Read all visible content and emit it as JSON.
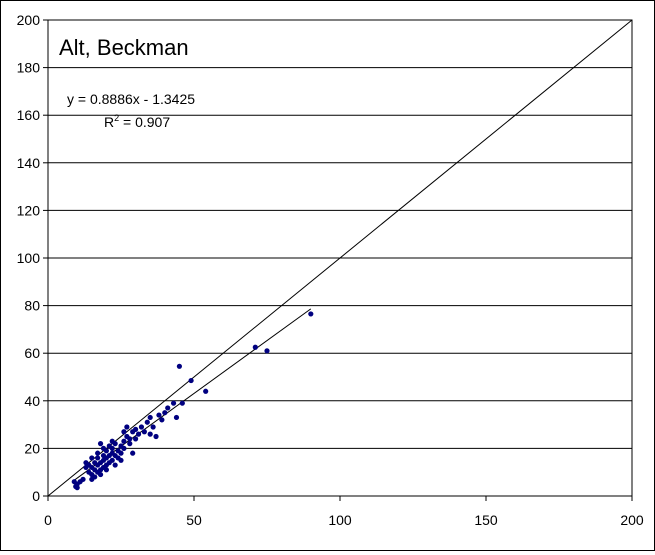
{
  "chart_data": {
    "type": "scatter",
    "title": "Alt, Beckman",
    "xlabel": "",
    "ylabel": "",
    "xlim": [
      0,
      200
    ],
    "ylim": [
      0,
      200
    ],
    "x_ticks": [
      0,
      50,
      100,
      150,
      200
    ],
    "y_ticks": [
      0,
      20,
      40,
      60,
      80,
      100,
      120,
      140,
      160,
      180,
      200
    ],
    "grid": "horizontal major gridlines",
    "legend": "none",
    "colors": {
      "points": "#000080",
      "lines": "#000000",
      "grid": "#000000"
    },
    "annotations": {
      "equation": "y = 0.8886x - 1.3425",
      "r2_prefix": "R",
      "r2_exp": "2",
      "r2_suffix": " = 0.907"
    },
    "trendline": {
      "slope": 0.8886,
      "intercept": -1.3425,
      "x_range": [
        9,
        90
      ]
    },
    "identity_line": {
      "x_range": [
        0,
        200
      ]
    },
    "series": [
      {
        "points": [
          [
            9,
            6
          ],
          [
            9.5,
            4
          ],
          [
            10,
            5
          ],
          [
            10,
            3.5
          ],
          [
            11,
            6
          ],
          [
            12,
            7
          ],
          [
            13,
            12
          ],
          [
            13,
            14
          ],
          [
            14,
            10
          ],
          [
            14,
            13
          ],
          [
            15,
            9
          ],
          [
            15,
            12
          ],
          [
            15,
            16
          ],
          [
            15,
            7
          ],
          [
            16,
            11
          ],
          [
            16,
            14
          ],
          [
            16,
            8
          ],
          [
            17,
            13
          ],
          [
            17,
            10
          ],
          [
            17,
            16
          ],
          [
            17,
            18
          ],
          [
            18,
            11
          ],
          [
            18,
            14
          ],
          [
            18,
            22
          ],
          [
            18,
            9
          ],
          [
            19,
            12
          ],
          [
            19,
            15
          ],
          [
            19,
            17
          ],
          [
            19,
            20
          ],
          [
            20,
            13
          ],
          [
            20,
            16
          ],
          [
            20,
            19
          ],
          [
            20,
            11
          ],
          [
            21,
            14
          ],
          [
            21,
            17
          ],
          [
            21,
            21
          ],
          [
            22,
            15
          ],
          [
            22,
            18
          ],
          [
            22,
            20
          ],
          [
            22,
            23
          ],
          [
            23,
            13
          ],
          [
            23,
            17
          ],
          [
            23,
            22
          ],
          [
            24,
            16
          ],
          [
            24,
            19
          ],
          [
            25,
            18
          ],
          [
            25,
            21
          ],
          [
            25,
            15
          ],
          [
            26,
            23
          ],
          [
            26,
            27
          ],
          [
            26,
            20
          ],
          [
            27,
            25
          ],
          [
            27,
            29
          ],
          [
            28,
            22
          ],
          [
            28,
            24
          ],
          [
            29,
            27
          ],
          [
            29,
            18
          ],
          [
            30,
            24
          ],
          [
            30,
            28
          ],
          [
            31,
            26
          ],
          [
            32,
            29
          ],
          [
            33,
            27
          ],
          [
            34,
            31
          ],
          [
            35,
            26
          ],
          [
            35,
            33
          ],
          [
            36,
            29
          ],
          [
            37,
            25
          ],
          [
            38,
            34
          ],
          [
            39,
            32
          ],
          [
            40,
            35
          ],
          [
            41,
            37
          ],
          [
            43,
            39
          ],
          [
            44,
            33
          ],
          [
            46,
            39
          ],
          [
            45,
            54.5
          ],
          [
            49,
            48.5
          ],
          [
            54,
            44
          ],
          [
            71,
            62.5
          ],
          [
            75,
            61
          ],
          [
            90,
            76.5
          ]
        ]
      }
    ]
  }
}
